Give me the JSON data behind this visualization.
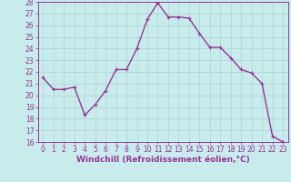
{
  "x": [
    0,
    1,
    2,
    3,
    4,
    5,
    6,
    7,
    8,
    9,
    10,
    11,
    12,
    13,
    14,
    15,
    16,
    17,
    18,
    19,
    20,
    21,
    22,
    23
  ],
  "y": [
    21.5,
    20.5,
    20.5,
    20.7,
    18.3,
    19.2,
    20.4,
    22.2,
    22.2,
    24.0,
    26.5,
    27.9,
    26.7,
    26.7,
    26.6,
    25.3,
    24.1,
    24.1,
    23.2,
    22.2,
    21.9,
    21.0,
    16.5,
    16.0
  ],
  "line_color": "#993399",
  "marker": "+",
  "marker_size": 4,
  "bg_color": "#c8ecec",
  "grid_color": "#b0d8d8",
  "xlabel": "Windchill (Refroidissement éolien,°C)",
  "ylim": [
    16,
    28
  ],
  "xlim": [
    -0.5,
    23.5
  ],
  "yticks": [
    16,
    17,
    18,
    19,
    20,
    21,
    22,
    23,
    24,
    25,
    26,
    27,
    28
  ],
  "xticks": [
    0,
    1,
    2,
    3,
    4,
    5,
    6,
    7,
    8,
    9,
    10,
    11,
    12,
    13,
    14,
    15,
    16,
    17,
    18,
    19,
    20,
    21,
    22,
    23
  ],
  "tick_fontsize": 5.5,
  "xlabel_fontsize": 6.5,
  "line_width": 1.0,
  "axis_color": "#993399",
  "marker_size_pt": 3.5
}
